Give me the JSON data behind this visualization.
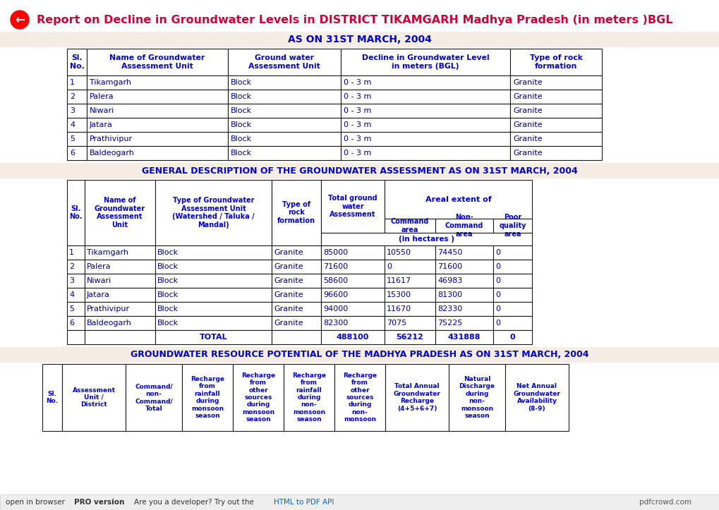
{
  "title": "Report on Decline in Groundwater Levels in DISTRICT TIKAMGARH Madhya Pradesh (in meters )BGL",
  "title_color": "#cc0033",
  "bg_color": "#ffffff",
  "section_bg": "#f5ece4",
  "table_border": "#1a1a1a",
  "header_text_color": "#0000cc",
  "data_text_color": "#000080",
  "section1_title": "AS ON 31ST MARCH, 2004",
  "section1_headers": [
    "Sl.\nNo.",
    "Name of Groundwater\nAssessment Unit",
    "Ground water\nAssessment Unit",
    "Decline in Groundwater Level\nin meters (BGL)",
    "Type of rock\nformation"
  ],
  "section1_data": [
    [
      "1",
      "Tikamgarh",
      "Block",
      "0 - 3 m",
      "Granite"
    ],
    [
      "2",
      "Palera",
      "Block",
      "0 - 3 m",
      "Granite"
    ],
    [
      "3",
      "Niwari",
      "Block",
      "0 - 3 m",
      "Granite"
    ],
    [
      "4",
      "Jatara",
      "Block",
      "0 - 3 m",
      "Granite"
    ],
    [
      "5",
      "Prathivipur",
      "Block",
      "0 - 3 m",
      "Granite"
    ],
    [
      "6",
      "Baldeogarh",
      "Block",
      "0 - 3 m",
      "Granite"
    ]
  ],
  "section2_title": "GENERAL DESCRIPTION OF THE GROUNDWATER ASSESSMENT AS ON 31ST MARCH, 2004",
  "section2_subheader": "Areal extent of",
  "section2_subheader2": "(in hectares )",
  "section2_left_labels": [
    "Sl.\nNo.",
    "Name of\nGroundwater\nAssessment\nUnit",
    "Type of Groundwater\nAssessment Unit\n(Watershed / Taluka /\nMandal)",
    "Type of\nrock\nformation"
  ],
  "section2_col4_label": "Total ground\nwater\nAssessment",
  "section2_sub_labels": [
    "Command\narea",
    "Non-\nCommand\narea",
    "Poor\nquality\narea"
  ],
  "section2_data": [
    [
      "1",
      "Tikamgarh",
      "Block",
      "Granite",
      "85000",
      "10550",
      "74450",
      "0"
    ],
    [
      "2",
      "Palera",
      "Block",
      "Granite",
      "71600",
      "0",
      "71600",
      "0"
    ],
    [
      "3",
      "Niwari",
      "Block",
      "Granite",
      "58600",
      "11617",
      "46983",
      "0"
    ],
    [
      "4",
      "Jatara",
      "Block",
      "Granite",
      "96600",
      "15300",
      "81300",
      "0"
    ],
    [
      "5",
      "Prathivipur",
      "Block",
      "Granite",
      "94000",
      "11670",
      "82330",
      "0"
    ],
    [
      "6",
      "Baldeogarh",
      "Block",
      "Granite",
      "82300",
      "7075",
      "75225",
      "0"
    ]
  ],
  "section2_total": [
    "",
    "",
    "TOTAL",
    "",
    "488100",
    "56212",
    "431888",
    "0"
  ],
  "section3_title": "GROUNDWATER RESOURCE POTENTIAL OF THE MADHYA PRADESH AS ON 31ST MARCH, 2004",
  "section3_headers": [
    "Sl.\nNo.",
    "Assessment\nUnit /\nDistrict",
    "Command/\nnon-\nCommand/\nTotal",
    "Recharge\nfrom\nrainfall\nduring\nmonsoon\nseason",
    "Recharge\nfrom\nother\nsources\nduring\nmonsoon\nseason",
    "Recharge\nfrom\nrainfall\nduring\nnon-\nmonsoon\nseason",
    "Recharge\nfrom\nother\nsources\nduring\nnon-\nmonsoon",
    "Total Annual\nGroundwater\nRecharge\n(4+5+6+7)",
    "Natural\nDischarge\nduring\nnon-\nmonsoon\nseason",
    "Net Annual\nGroundwater\nAvailability\n(8-9)"
  ],
  "bottom_texts": [
    "open in browser",
    "PRO version",
    "Are you a developer? Try out the ",
    "HTML to PDF API",
    "pdfcrowd.com"
  ]
}
